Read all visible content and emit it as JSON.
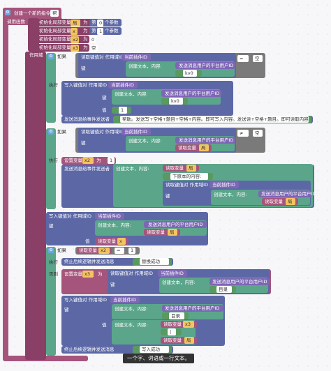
{
  "header": {
    "title": "创建一个新的指令",
    "field": "帮"
  },
  "call": {
    "label": "调用函数"
  },
  "init": [
    {
      "label": "初始化局部变量",
      "var": "局",
      "as": "为",
      "nth_pre": "第",
      "n": "0",
      "nth_post": "个参数"
    },
    {
      "label": "初始化局部变量",
      "var": "x",
      "as": "为",
      "nth_pre": "第",
      "n": "1",
      "nth_post": "个参数"
    },
    {
      "label": "初始化局部变量",
      "var": "x2",
      "as": "为",
      "value": "0"
    },
    {
      "label": "初始化局部变量",
      "var": "x3",
      "as": "为",
      "value": "空"
    }
  ],
  "scope": {
    "label": "作用域"
  },
  "if1": {
    "if_label": "如果",
    "read": "读取键值对 作用域ID",
    "current": "当前插件ID",
    "key": "键",
    "create_text": "创建文本，内容:",
    "platform_id": "发送消息用户的平台用户ID",
    "kv0": "kv0",
    "op": "=",
    "empty": "空",
    "do_label": "执行",
    "write": "写入键值对 作用域ID",
    "value_label": "值",
    "one": "1",
    "send_label": "发送消息给事件发送者",
    "help": "帮助。发送写+空格+题目+空格+内容。即可写入内容。发送读+空格+题目。即可读取内容。"
  },
  "if2": {
    "if_label": "如果",
    "read": "读取键值对 作用域ID",
    "current": "当前插件ID",
    "key": "键",
    "create_text": "创建文本，内容:",
    "platform_id": "发送消息用户的平台用户ID",
    "read_var": "读取变量",
    "var": "局",
    "op": "≠",
    "empty": "空",
    "do_label": "执行",
    "set": "设置变量",
    "setvar": "x2",
    "as": "为",
    "one": "1",
    "send_label": "发送消息给事件发送者",
    "create_text2": "创建文本，内容:",
    "read_var2": "读取变量",
    "var2": "局",
    "quote_text": "下原本的内容:",
    "read2": "读取键值对 作用域ID",
    "current2": "当前插件ID",
    "key2": "键",
    "create_text3": "创建文本，内容:",
    "platform_id2": "发送消息用户的平台用户ID",
    "read_var3": "读取变量",
    "var3": "局"
  },
  "write_main": {
    "write": "写入键值对 作用域ID",
    "current": "当前插件ID",
    "key": "键",
    "create_text": "创建文本，内容:",
    "platform_id": "发送消息用户的平台用户ID",
    "read_var": "读取变量",
    "var": "局",
    "value_label": "值",
    "read_var2": "读取变量",
    "var2": "x"
  },
  "if3": {
    "if_label": "如果",
    "read_var": "读取变量",
    "var": "x2",
    "op": "=",
    "one": "1",
    "do_label": "执行",
    "stop": "终止后续逻辑并发送消息",
    "replace": "替换成功",
    "else_label": "否则",
    "set": "设置变量",
    "setvar": "x3",
    "as": "为",
    "read": "读取键值对 作用域ID",
    "current": "当前插件ID",
    "key": "键",
    "create_text": "创建文本，内容:",
    "platform_id": "发送消息用户的平台用户ID",
    "dir": "目录",
    "write": "写入键值对 作用域ID",
    "current2": "当前插件ID",
    "key2": "键",
    "create_text2": "创建文本，内容:",
    "platform_id2": "发送消息用户的平台用户ID",
    "dir2": "目录",
    "value_label": "值",
    "create_text3": "创建文本，内容:",
    "read_var2": "读取变量",
    "var2": "x3",
    "bracket": "|",
    "read_var3": "读取变量",
    "var3": "局",
    "stop2": "终止后续逻辑并发送消息",
    "write_ok": "写入成功"
  },
  "tooltip": "一个字、词语或一行文本。",
  "colors": {
    "pink": "#a5547c",
    "blue": "#5c68a6",
    "purple": "#7d67b5",
    "teal": "#5ba58b",
    "green": "#5a9960"
  }
}
